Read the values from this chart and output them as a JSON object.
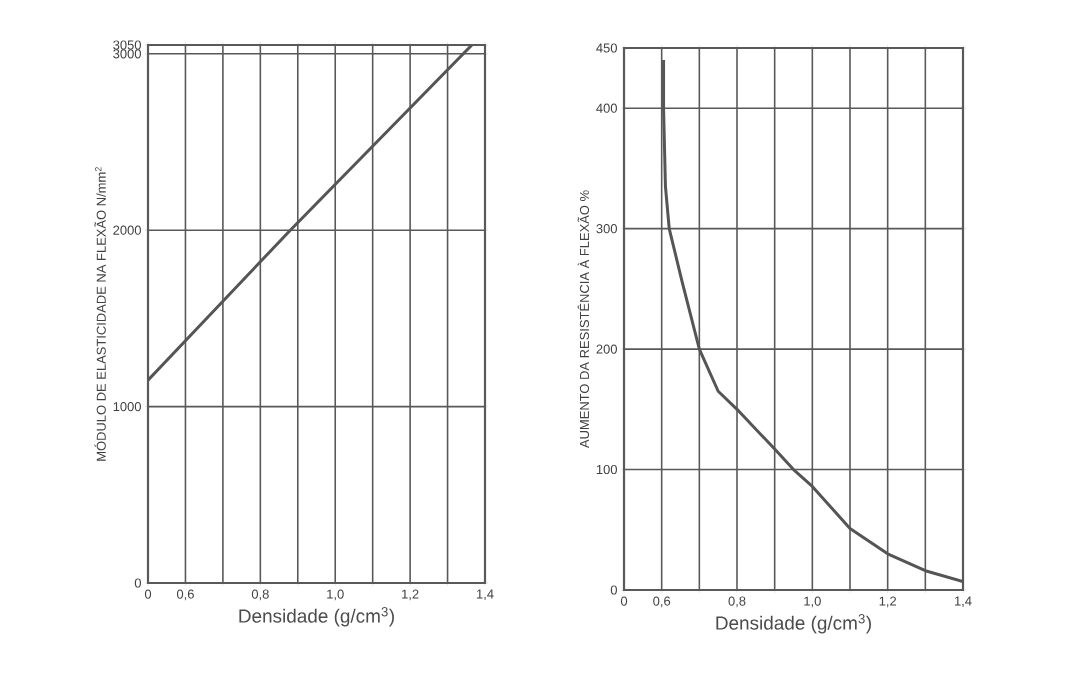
{
  "chart_data": [
    {
      "type": "line",
      "xlabel": "Densidade (g/cm$^{3}$)",
      "ylabel": "MÓDULO DE ELASTICIDADE NA FLEXÃO N/mm$^{2}$",
      "x": [
        0.5,
        0.88,
        1.365
      ],
      "values": [
        1150,
        2000,
        3050
      ],
      "color": "#555555",
      "xlim": [
        0.5,
        1.4
      ],
      "xticks": [
        {
          "value": 0.5,
          "label": "0"
        },
        {
          "value": 0.6,
          "label": "0,6"
        },
        {
          "value": 0.7,
          "label": null
        },
        {
          "value": 0.8,
          "label": "0,8"
        },
        {
          "value": 0.9,
          "label": null
        },
        {
          "value": 1.0,
          "label": "1,0"
        },
        {
          "value": 1.1,
          "label": null
        },
        {
          "value": 1.2,
          "label": "1,2"
        },
        {
          "value": 1.3,
          "label": null
        },
        {
          "value": 1.4,
          "label": "1,4"
        }
      ],
      "ylim": [
        0,
        3050
      ],
      "yticks": [
        0,
        1000,
        2000,
        3000,
        3050
      ],
      "grid": true
    },
    {
      "type": "line",
      "xlabel": "Densidade (g/cm$^{3}$)",
      "ylabel": "AUMENTO DA RESISTÊNCIA À FLEXÃO %",
      "x": [
        0.605,
        0.605,
        0.61,
        0.62,
        0.655,
        0.7,
        0.75,
        0.8,
        0.9,
        0.95,
        1.0,
        1.1,
        1.2,
        1.3,
        1.4
      ],
      "values": [
        440,
        400,
        335,
        300,
        255,
        200,
        165,
        150,
        117,
        100,
        86,
        51,
        30,
        16,
        7
      ],
      "color": "#555555",
      "xlim": [
        0.5,
        1.4
      ],
      "xticks": [
        {
          "value": 0.5,
          "label": "0"
        },
        {
          "value": 0.6,
          "label": "0,6"
        },
        {
          "value": 0.7,
          "label": null
        },
        {
          "value": 0.8,
          "label": "0,8"
        },
        {
          "value": 0.9,
          "label": null
        },
        {
          "value": 1.0,
          "label": "1,0"
        },
        {
          "value": 1.1,
          "label": null
        },
        {
          "value": 1.2,
          "label": "1,2"
        },
        {
          "value": 1.3,
          "label": null
        },
        {
          "value": 1.4,
          "label": "1,4"
        }
      ],
      "ylim": [
        0,
        450
      ],
      "yticks": [
        0,
        100,
        200,
        300,
        400,
        450
      ],
      "grid": true
    }
  ]
}
